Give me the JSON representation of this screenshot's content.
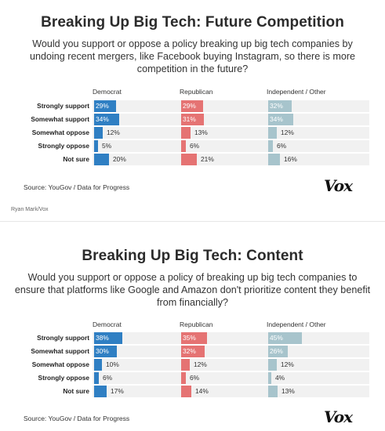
{
  "colors": {
    "democrat": "#2f7fc3",
    "republican": "#e57373",
    "independent": "#a7c4cc",
    "row_bg": "#f1f1f1"
  },
  "credit": "Ryan Mark/Vox",
  "chart_data": [
    {
      "type": "bar",
      "title": "Breaking Up Big Tech: Future Competition",
      "subtitle": "Would you support or oppose a policy breaking up big tech companies by undoing recent mergers, like Facebook buying Instagram, so there is more competition in the future?",
      "categories": [
        "Strongly support",
        "Somewhat support",
        "Somewhat oppose",
        "Strongly oppose",
        "Not sure"
      ],
      "series": [
        {
          "name": "Democrat",
          "values": [
            29,
            34,
            12,
            5,
            20
          ],
          "labels": [
            "29%",
            "34%",
            "12%",
            "5%",
            "20%"
          ]
        },
        {
          "name": "Republican",
          "values": [
            29,
            31,
            13,
            6,
            21
          ],
          "labels": [
            "29%",
            "31%",
            "13%",
            "6%",
            "21%"
          ]
        },
        {
          "name": "Independent / Other",
          "values": [
            32,
            34,
            12,
            6,
            16
          ],
          "labels": [
            "32%",
            "34%",
            "12%",
            "6%",
            "16%"
          ]
        }
      ],
      "source": "Source: YouGov / Data for Progress",
      "logo": "Vox"
    },
    {
      "type": "bar",
      "title": "Breaking Up Big Tech: Content",
      "subtitle": "Would you support or oppose a policy of breaking up big tech companies to ensure that platforms like Google and Amazon don't prioritize content they benefit from financially?",
      "categories": [
        "Strongly support",
        "Somewhat support",
        "Somewhat oppose",
        "Strongly oppose",
        "Not sure"
      ],
      "series": [
        {
          "name": "Democrat",
          "values": [
            38,
            30,
            10,
            6,
            17
          ],
          "labels": [
            "38%",
            "30%",
            "10%",
            "6%",
            "17%"
          ]
        },
        {
          "name": "Republican",
          "values": [
            35,
            32,
            12,
            6,
            14
          ],
          "labels": [
            "35%",
            "32%",
            "12%",
            "6%",
            "14%"
          ]
        },
        {
          "name": "Independent / Other",
          "values": [
            45,
            26,
            12,
            4,
            13
          ],
          "labels": [
            "45%",
            "26%",
            "12%",
            "4%",
            "13%"
          ]
        }
      ],
      "source": "Source: YouGov / Data for Progress",
      "logo": "Vox"
    }
  ]
}
